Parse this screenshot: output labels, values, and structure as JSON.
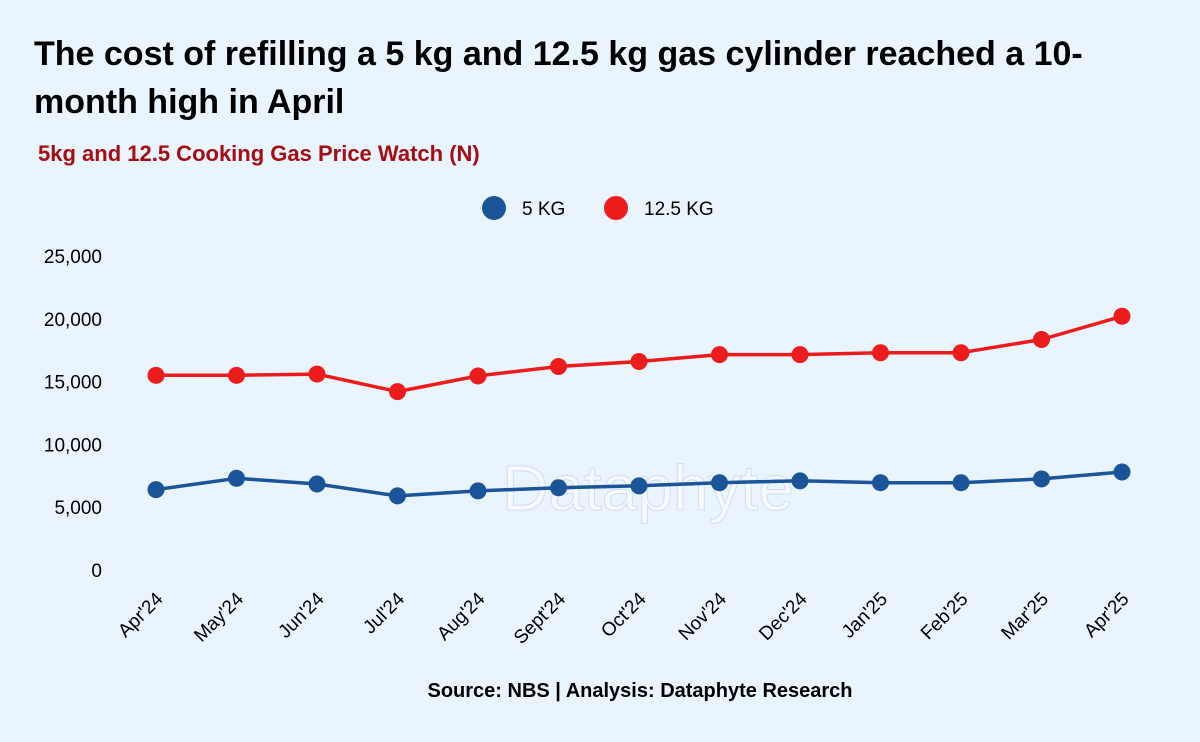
{
  "title": "The cost of refilling a 5 kg and 12.5 kg gas cylinder reached a 10-month high in April",
  "subtitle": "5kg and 12.5 Cooking Gas Price Watch (N)",
  "source": "Source: NBS | Analysis: Dataphyte Research",
  "watermark": "Dataphyte",
  "colors": {
    "background": "#eaf4fc",
    "subtitle": "#a50d12",
    "series_5kg": "#1b5499",
    "series_12_5kg": "#ec1c1c"
  },
  "chart_data": {
    "type": "line",
    "title": "The cost of refilling a 5 kg and 12.5 kg gas cylinder reached a 10-month high in April",
    "subtitle": "5kg and 12.5 Cooking Gas Price Watch (N)",
    "categories": [
      "Apr'24",
      "May'24",
      "Jun'24",
      "Jul'24",
      "Aug'24",
      "Sept'24",
      "Oct'24",
      "Nov'24",
      "Dec'24",
      "Jan'25",
      "Feb'25",
      "Mar'25",
      "Apr'25"
    ],
    "series": [
      {
        "name": "5 KG",
        "color": "#1b5499",
        "values": [
          6400,
          7300,
          6850,
          5900,
          6300,
          6550,
          6700,
          6950,
          7100,
          6950,
          6950,
          7250,
          7800
        ]
      },
      {
        "name": "12.5 KG",
        "color": "#ec1c1c",
        "values": [
          15500,
          15500,
          15600,
          14200,
          15450,
          16200,
          16600,
          17150,
          17150,
          17300,
          17300,
          18350,
          20200
        ]
      }
    ],
    "y_ticks": [
      "25,000",
      "20,000",
      "15,000",
      "10,000",
      "5,000",
      "0"
    ],
    "ylim": [
      0,
      25000
    ],
    "grid": false,
    "legend_position": "top-center"
  }
}
